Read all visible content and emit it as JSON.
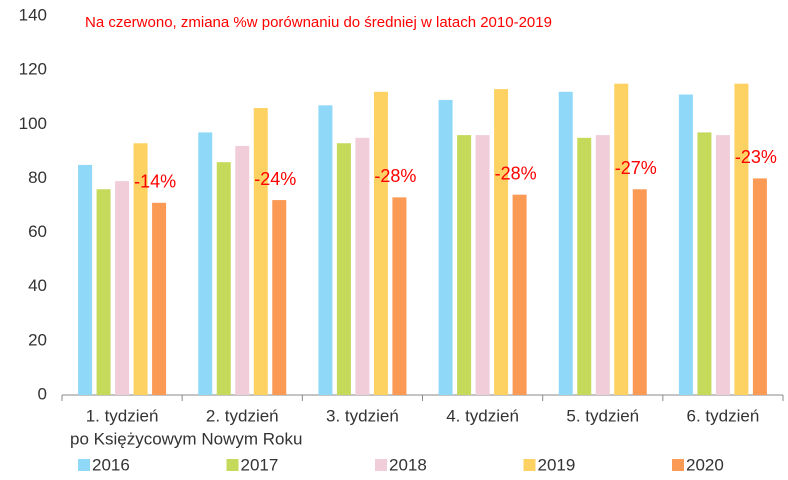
{
  "chart_data": {
    "type": "bar",
    "title": "Na czerwono, zmiana %w porównaniu do średniej w latach 2010-2019",
    "categories": [
      "1. tydzień",
      "2. tydzień",
      "3. tydzień",
      "4. tydzień",
      "5. tydzień",
      "6. tydzień"
    ],
    "xlabel": "po Księżycowym Nowym Roku",
    "series": [
      {
        "name": "2016",
        "color": "#8fd8f8",
        "values": [
          85,
          97,
          107,
          109,
          112,
          111
        ]
      },
      {
        "name": "2017",
        "color": "#c5d95a",
        "values": [
          76,
          86,
          93,
          96,
          95,
          97
        ]
      },
      {
        "name": "2018",
        "color": "#f0cdd8",
        "values": [
          79,
          92,
          95,
          96,
          96,
          96
        ]
      },
      {
        "name": "2019",
        "color": "#fdd263",
        "values": [
          93,
          106,
          112,
          113,
          115,
          115
        ]
      },
      {
        "name": "2020",
        "color": "#fb9a55",
        "values": [
          71,
          72,
          73,
          74,
          76,
          80
        ]
      }
    ],
    "annotations": [
      "-14%",
      "-24%",
      "-28%",
      "-28%",
      "-27%",
      "-23%"
    ],
    "annotation_color": "#ff0000",
    "ylim": [
      0,
      140
    ],
    "yticks": [
      0,
      20,
      40,
      60,
      80,
      100,
      120,
      140
    ],
    "grid": false
  }
}
